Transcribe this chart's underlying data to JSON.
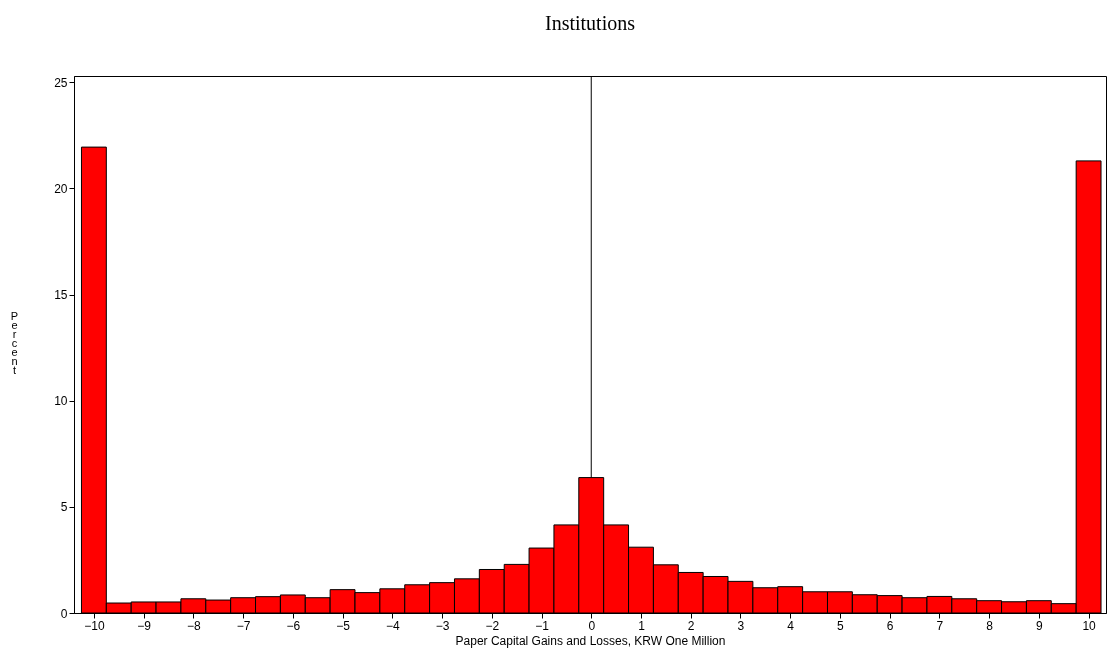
{
  "chart_data": {
    "type": "histogram",
    "title": "Institutions",
    "xlabel": "Paper Capital Gains and Losses, KRW One Million",
    "ylabel": "Percent",
    "bins": [
      -10.25,
      -9.75,
      -9.25,
      -8.75,
      -8.25,
      -7.75,
      -7.25,
      -6.75,
      -6.25,
      -5.75,
      -5.25,
      -4.75,
      -4.25,
      -3.75,
      -3.25,
      -2.75,
      -2.25,
      -1.75,
      -1.25,
      -0.75,
      -0.25,
      0.25,
      0.75,
      1.25,
      1.75,
      2.25,
      2.75,
      3.25,
      3.75,
      4.25,
      4.75,
      5.25,
      5.75,
      6.25,
      6.75,
      7.25,
      7.75,
      8.25,
      8.75,
      9.25,
      9.75,
      10.25
    ],
    "values": [
      21.95,
      0.47,
      0.52,
      0.52,
      0.67,
      0.61,
      0.72,
      0.77,
      0.85,
      0.72,
      1.1,
      0.96,
      1.14,
      1.33,
      1.43,
      1.61,
      2.05,
      2.29,
      3.06,
      4.15,
      6.38,
      4.15,
      3.1,
      2.27,
      1.91,
      1.72,
      1.49,
      1.19,
      1.24,
      1.0,
      1.0,
      0.86,
      0.82,
      0.72,
      0.78,
      0.67,
      0.58,
      0.53,
      0.58,
      0.44,
      21.3
    ],
    "color": "#ff0000",
    "xlim": [
      -10.4,
      10.35
    ],
    "xticks": [
      -10,
      -9,
      -8,
      -7,
      -6,
      -5,
      -4,
      -3,
      -2,
      -1,
      0,
      1,
      2,
      3,
      4,
      5,
      6,
      7,
      8,
      9,
      10
    ],
    "ylim": [
      0,
      25.3
    ],
    "yticks": [
      0,
      5,
      10,
      15,
      20,
      25
    ],
    "ref_lines": [
      {
        "axis": "x",
        "value": 0,
        "color": "#000000"
      }
    ],
    "grid": false
  }
}
